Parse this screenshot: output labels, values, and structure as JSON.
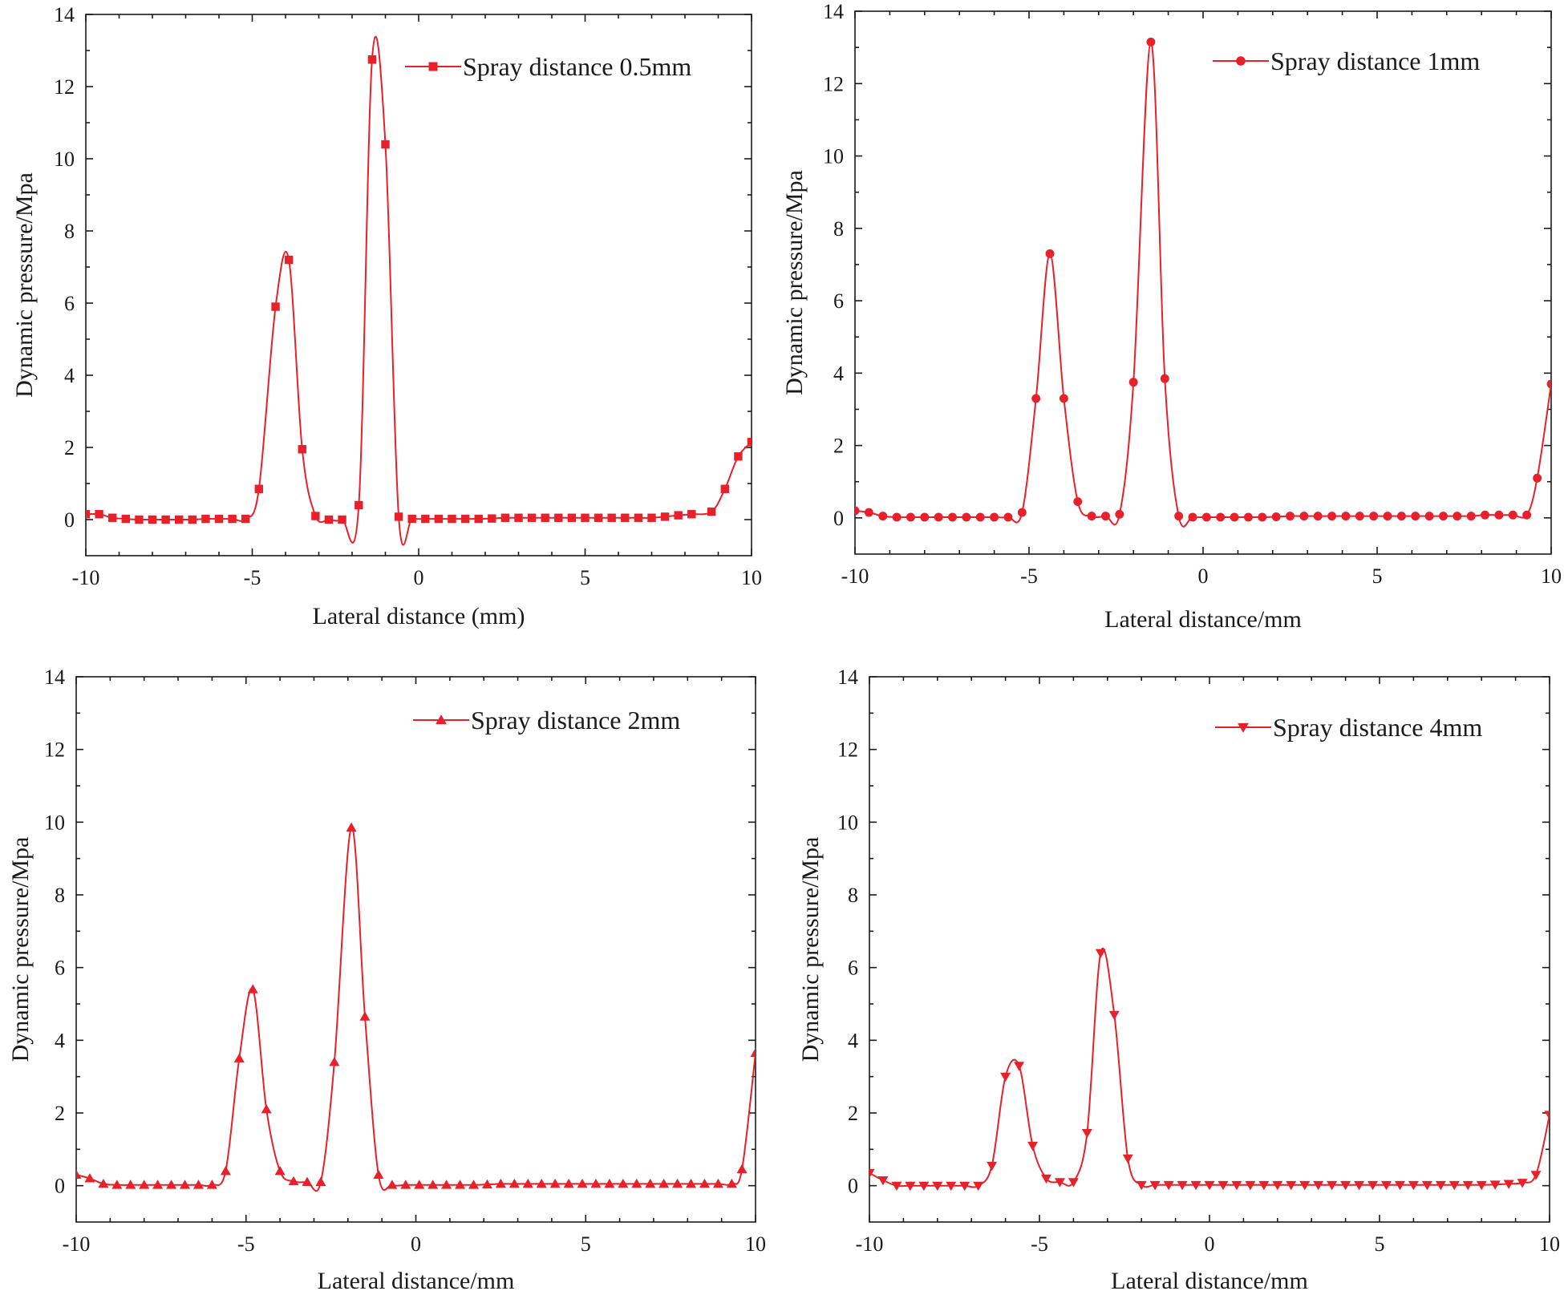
{
  "chart_data": [
    {
      "type": "line",
      "panel": "top-left",
      "title": "",
      "xlabel": "Lateral distance (mm)",
      "ylabel": "Dynamic pressure/Mpa",
      "xlim": [
        -10,
        10
      ],
      "ylim": [
        -1,
        14
      ],
      "xticks": [
        -10,
        -5,
        0,
        5,
        10
      ],
      "yticks": [
        0,
        2,
        4,
        6,
        8,
        10,
        12,
        14
      ],
      "legend_position": "top-right",
      "marker": "square",
      "color": "#e8202a",
      "series": [
        {
          "name": "Spray distance 0.5mm",
          "x": [
            -10,
            -9.6,
            -9.2,
            -8.8,
            -8.4,
            -8.0,
            -7.6,
            -7.2,
            -6.8,
            -6.4,
            -6.0,
            -5.6,
            -5.2,
            -4.8,
            -4.3,
            -3.9,
            -3.5,
            -3.1,
            -2.7,
            -2.3,
            -1.8,
            -1.4,
            -1.0,
            -0.6,
            -0.2,
            0.2,
            0.6,
            1.0,
            1.4,
            1.8,
            2.2,
            2.6,
            3.0,
            3.4,
            3.8,
            4.2,
            4.6,
            5.0,
            5.4,
            5.8,
            6.2,
            6.6,
            7.0,
            7.4,
            7.8,
            8.2,
            8.8,
            9.2,
            9.6,
            10.0
          ],
          "y": [
            0.15,
            0.15,
            0.05,
            0.02,
            0.0,
            0.0,
            0.0,
            0.0,
            0.0,
            0.02,
            0.02,
            0.02,
            0.02,
            0.85,
            5.9,
            7.2,
            1.95,
            0.1,
            0.0,
            0.0,
            0.4,
            12.75,
            10.4,
            0.08,
            0.02,
            0.02,
            0.02,
            0.02,
            0.02,
            0.02,
            0.03,
            0.05,
            0.05,
            0.05,
            0.05,
            0.05,
            0.05,
            0.05,
            0.05,
            0.05,
            0.05,
            0.05,
            0.05,
            0.08,
            0.12,
            0.15,
            0.22,
            0.85,
            1.75,
            2.15
          ]
        }
      ]
    },
    {
      "type": "line",
      "panel": "top-right",
      "title": "",
      "xlabel": "Lateral distance/mm",
      "ylabel": "Dynamic pressure/Mpa",
      "xlim": [
        -10,
        10
      ],
      "ylim": [
        -1,
        14
      ],
      "xticks": [
        -10,
        -5,
        0,
        5,
        10
      ],
      "yticks": [
        0,
        2,
        4,
        6,
        8,
        10,
        12,
        14
      ],
      "legend_position": "top-right",
      "marker": "circle",
      "color": "#e8202a",
      "series": [
        {
          "name": "Spray distance 1mm",
          "x": [
            -10,
            -9.6,
            -9.2,
            -8.8,
            -8.4,
            -8.0,
            -7.6,
            -7.2,
            -6.8,
            -6.4,
            -6.0,
            -5.6,
            -5.2,
            -4.8,
            -4.4,
            -4.0,
            -3.6,
            -3.2,
            -2.8,
            -2.4,
            -2.0,
            -1.5,
            -1.1,
            -0.7,
            -0.3,
            0.1,
            0.5,
            0.9,
            1.3,
            1.7,
            2.1,
            2.5,
            2.9,
            3.3,
            3.7,
            4.1,
            4.5,
            4.9,
            5.3,
            5.7,
            6.1,
            6.5,
            6.9,
            7.3,
            7.7,
            8.1,
            8.5,
            8.9,
            9.3,
            9.6,
            10.0
          ],
          "y": [
            0.2,
            0.15,
            0.05,
            0.02,
            0.02,
            0.02,
            0.02,
            0.02,
            0.02,
            0.02,
            0.02,
            0.02,
            0.15,
            3.3,
            7.3,
            3.3,
            0.45,
            0.05,
            0.05,
            0.1,
            3.75,
            13.15,
            3.85,
            0.05,
            0.02,
            0.02,
            0.02,
            0.02,
            0.02,
            0.02,
            0.03,
            0.05,
            0.05,
            0.05,
            0.05,
            0.05,
            0.05,
            0.05,
            0.05,
            0.05,
            0.05,
            0.05,
            0.05,
            0.05,
            0.05,
            0.08,
            0.08,
            0.08,
            0.08,
            1.1,
            3.7
          ]
        }
      ]
    },
    {
      "type": "line",
      "panel": "bottom-left",
      "title": "",
      "xlabel": "Lateral distance/mm",
      "ylabel": "Dynamic pressure/Mpa",
      "xlim": [
        -10,
        10
      ],
      "ylim": [
        -1,
        14
      ],
      "xticks": [
        -10,
        -5,
        0,
        5,
        10
      ],
      "yticks": [
        0,
        2,
        4,
        6,
        8,
        10,
        12,
        14
      ],
      "legend_position": "top-right",
      "marker": "triangle-up",
      "color": "#e8202a",
      "series": [
        {
          "name": "Spray distance 2mm",
          "x": [
            -10,
            -9.6,
            -9.2,
            -8.8,
            -8.4,
            -8.0,
            -7.6,
            -7.2,
            -6.8,
            -6.4,
            -6.0,
            -5.6,
            -5.2,
            -4.8,
            -4.4,
            -4.0,
            -3.6,
            -3.2,
            -2.8,
            -2.4,
            -1.9,
            -1.5,
            -1.1,
            -0.7,
            -0.3,
            0.1,
            0.5,
            0.9,
            1.3,
            1.7,
            2.1,
            2.5,
            2.9,
            3.3,
            3.7,
            4.1,
            4.5,
            4.9,
            5.3,
            5.7,
            6.1,
            6.5,
            6.9,
            7.3,
            7.7,
            8.1,
            8.5,
            8.9,
            9.3,
            9.6,
            10.0
          ],
          "y": [
            0.3,
            0.2,
            0.05,
            0.02,
            0.02,
            0.02,
            0.02,
            0.02,
            0.02,
            0.02,
            0.02,
            0.4,
            3.5,
            5.4,
            2.1,
            0.4,
            0.12,
            0.1,
            0.1,
            3.4,
            9.85,
            4.65,
            0.3,
            0.02,
            0.02,
            0.02,
            0.02,
            0.02,
            0.02,
            0.02,
            0.03,
            0.05,
            0.05,
            0.05,
            0.05,
            0.05,
            0.05,
            0.05,
            0.05,
            0.05,
            0.05,
            0.05,
            0.05,
            0.05,
            0.05,
            0.05,
            0.05,
            0.05,
            0.05,
            0.45,
            3.65
          ]
        }
      ]
    },
    {
      "type": "line",
      "panel": "bottom-right",
      "title": "",
      "xlabel": "Lateral distance/mm",
      "ylabel": "Dynamic pressure/Mpa",
      "xlim": [
        -10,
        10
      ],
      "ylim": [
        -1,
        14
      ],
      "xticks": [
        -10,
        -5,
        0,
        5,
        10
      ],
      "yticks": [
        0,
        2,
        4,
        6,
        8,
        10,
        12,
        14
      ],
      "legend_position": "top-right",
      "marker": "triangle-down",
      "color": "#e8202a",
      "series": [
        {
          "name": "Spray distance 4mm",
          "x": [
            -10,
            -9.6,
            -9.2,
            -8.8,
            -8.4,
            -8.0,
            -7.6,
            -7.2,
            -6.8,
            -6.4,
            -6.0,
            -5.6,
            -5.2,
            -4.8,
            -4.4,
            -4.0,
            -3.6,
            -3.2,
            -2.8,
            -2.4,
            -2.0,
            -1.6,
            -1.2,
            -0.8,
            -0.4,
            0.0,
            0.4,
            0.8,
            1.2,
            1.6,
            2.0,
            2.4,
            2.8,
            3.2,
            3.6,
            4.0,
            4.4,
            4.8,
            5.2,
            5.6,
            6.0,
            6.4,
            6.8,
            7.2,
            7.6,
            8.0,
            8.4,
            8.8,
            9.2,
            9.6,
            10.0
          ],
          "y": [
            0.35,
            0.15,
            0.0,
            0.0,
            0.0,
            0.0,
            0.0,
            0.0,
            0.0,
            0.55,
            3.0,
            3.3,
            1.1,
            0.2,
            0.1,
            0.1,
            1.45,
            6.4,
            4.7,
            0.75,
            0.02,
            0.02,
            0.02,
            0.02,
            0.02,
            0.02,
            0.02,
            0.02,
            0.02,
            0.02,
            0.02,
            0.02,
            0.02,
            0.02,
            0.02,
            0.02,
            0.02,
            0.02,
            0.02,
            0.02,
            0.02,
            0.02,
            0.02,
            0.02,
            0.02,
            0.02,
            0.03,
            0.05,
            0.08,
            0.3,
            1.95
          ]
        }
      ]
    }
  ]
}
